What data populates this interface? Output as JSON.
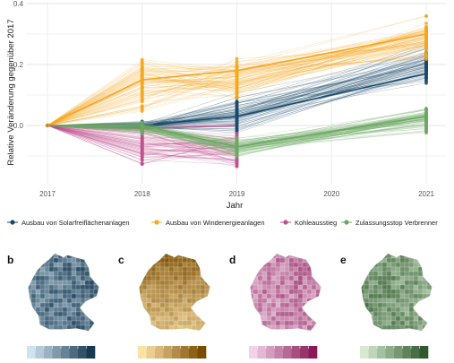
{
  "chart_data": {
    "type": "line",
    "xlabel": "Jahr",
    "ylabel": "Relative Veränderung gegenüber 2017",
    "x": [
      2017,
      2018,
      2019,
      2020,
      2021
    ],
    "xticks": [
      "2017",
      "2018",
      "2019",
      "2020",
      "2021"
    ],
    "yticks": [
      "0.0",
      "0.2",
      "0.4"
    ],
    "ylim": [
      -0.2,
      0.4
    ],
    "grid": true,
    "legend_position": "bottom",
    "series": [
      {
        "name": "Ausbau von Solarfreiflächenanlagen",
        "color": "#1b4a6b",
        "median_values": [
          0.0,
          0.0,
          0.03,
          null,
          0.17
        ],
        "spread": {
          "2018": [
            -0.02,
            0.02
          ],
          "2019": [
            -0.04,
            0.12
          ],
          "2021": [
            0.12,
            0.29
          ]
        }
      },
      {
        "name": "Ausbau von Windenergieanlagen",
        "color": "#f5a71f",
        "median_values": [
          0.0,
          0.15,
          0.18,
          null,
          0.3
        ],
        "spread": {
          "2018": [
            0.02,
            0.24
          ],
          "2019": [
            0.06,
            0.26
          ],
          "2021": [
            0.2,
            0.38
          ]
        }
      },
      {
        "name": "Kohleausstieg",
        "color": "#c0508e",
        "median_values": [
          0.0,
          -0.01,
          0.0,
          null,
          null
        ],
        "spread": {
          "2018": [
            -0.15,
            0.02
          ],
          "2019": [
            -0.17,
            0.02
          ]
        }
      },
      {
        "name": "Zulassungsstop Verbrenner",
        "color": "#6ca864",
        "median_values": [
          0.0,
          0.0,
          -0.07,
          null,
          0.03
        ],
        "spread": {
          "2018": [
            -0.03,
            0.02
          ],
          "2019": [
            -0.12,
            -0.02
          ],
          "2021": [
            -0.05,
            0.08
          ]
        }
      }
    ]
  },
  "panels": [
    {
      "letter": "b",
      "light": "#cfe2f0",
      "dark": "#173a52"
    },
    {
      "letter": "c",
      "light": "#fde2a8",
      "dark": "#7a4c00"
    },
    {
      "letter": "d",
      "light": "#f2d2e6",
      "dark": "#8a1a58"
    },
    {
      "letter": "e",
      "light": "#d6ead0",
      "dark": "#2f5a2c"
    }
  ]
}
